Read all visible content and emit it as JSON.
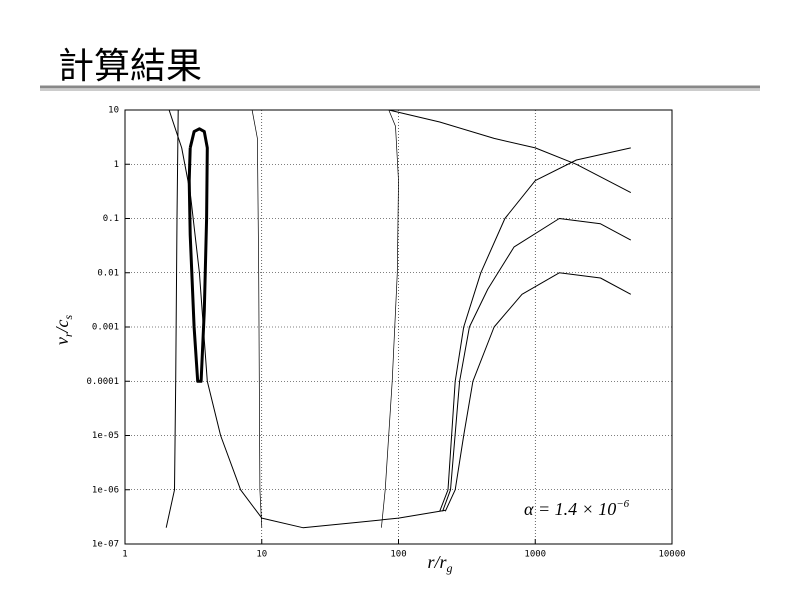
{
  "title": "計算結果",
  "chart_data": {
    "type": "line",
    "x_label": [
      "r/r",
      "g"
    ],
    "y_label": [
      "v",
      "r",
      "/c",
      "s"
    ],
    "annotation": [
      "α = 1.4 × 10",
      "−6"
    ],
    "xscale": "log",
    "yscale": "log",
    "grid": true,
    "xlim": [
      1,
      10000
    ],
    "xticks": [
      1,
      10,
      100,
      1000,
      10000
    ],
    "ylim": [
      1e-07,
      10
    ],
    "yticks": [
      {
        "value": 1e-07,
        "label": "1e-07"
      },
      {
        "value": 1e-06,
        "label": "1e-06"
      },
      {
        "value": 1e-05,
        "label": "1e-05"
      },
      0.0001,
      0.001,
      0.01,
      0.1,
      1,
      10
    ],
    "series": [
      {
        "color": "#000",
        "width": 3,
        "x": [
          3.0,
          3.2,
          3.5,
          3.8,
          4.0,
          3.95,
          3.8,
          3.6,
          3.4,
          3.2,
          3.0,
          2.95,
          3.0
        ],
        "values": [
          2,
          4,
          4.5,
          4,
          2,
          0.1,
          0.002,
          0.0001,
          0.0001,
          0.001,
          0.05,
          0.5,
          2
        ]
      },
      {
        "color": "#000",
        "width": 1,
        "x": [
          2.1,
          2.6,
          3.0,
          3.5,
          4,
          5,
          7,
          10,
          20,
          50,
          100,
          200,
          220
        ],
        "values": [
          10,
          2,
          0.3,
          0.01,
          0.0001,
          1e-05,
          1e-06,
          3e-07,
          2e-07,
          2.5e-07,
          3e-07,
          4e-07,
          4.2e-07
        ]
      },
      {
        "color": "#000",
        "width": 1,
        "x": [
          2.0,
          2.3,
          2.35,
          2.4,
          2.45
        ],
        "values": [
          2e-07,
          1e-06,
          0.0001,
          0.1,
          10
        ]
      },
      {
        "color": "#000",
        "width": 1,
        "x": [
          200,
          230,
          260,
          300,
          400,
          600,
          1000,
          2000,
          5000
        ],
        "values": [
          4e-07,
          1e-06,
          0.0001,
          0.001,
          0.01,
          0.1,
          0.5,
          1.2,
          2
        ]
      },
      {
        "color": "#000",
        "width": 1,
        "x": [
          210,
          240,
          280,
          330,
          450,
          700,
          1500,
          3000,
          5000
        ],
        "values": [
          4e-07,
          1e-06,
          0.0001,
          0.001,
          0.005,
          0.03,
          0.1,
          0.08,
          0.04
        ]
      },
      {
        "color": "#000",
        "width": 1,
        "x": [
          220,
          260,
          300,
          350,
          500,
          800,
          1500,
          3000,
          5000
        ],
        "values": [
          4e-07,
          1e-06,
          1e-05,
          0.0001,
          0.001,
          0.004,
          0.01,
          0.008,
          0.004
        ]
      },
      {
        "color": "#000",
        "width": 1,
        "x": [
          85,
          200,
          500,
          1000,
          2000,
          5000
        ],
        "values": [
          10,
          6,
          3,
          2,
          1,
          0.3
        ]
      },
      {
        "color": "#000",
        "width": 0.7,
        "x": [
          8.5,
          9.3,
          9.5,
          9.6,
          9.7,
          10
        ],
        "values": [
          10,
          3,
          0.01,
          0.0001,
          1e-06,
          2e-07
        ]
      },
      {
        "color": "#000",
        "width": 0.7,
        "x": [
          85,
          95,
          100,
          98,
          90,
          80,
          75
        ],
        "values": [
          10,
          5,
          0.5,
          0.01,
          0.0001,
          1e-06,
          2e-07
        ]
      }
    ]
  }
}
